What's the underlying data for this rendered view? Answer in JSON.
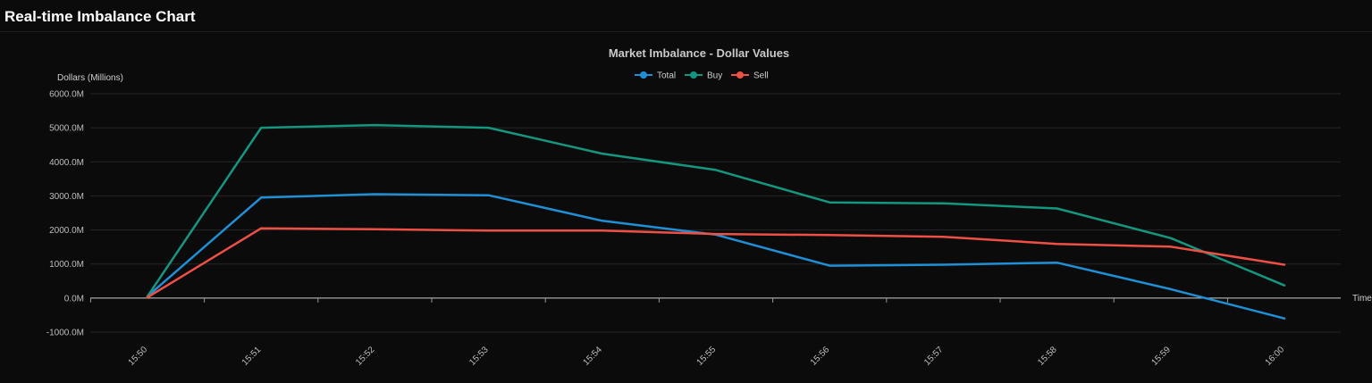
{
  "header": {
    "title": "Real-time Imbalance Chart"
  },
  "chart_data": {
    "type": "line",
    "title": "Market Imbalance - Dollar Values",
    "xlabel": "Time",
    "ylabel": "Dollars (Millions)",
    "ylim": [
      -1000,
      6000
    ],
    "yticks": [
      6000,
      5000,
      4000,
      3000,
      2000,
      1000,
      0,
      -1000
    ],
    "ytick_labels": [
      "6000.0M",
      "5000.0M",
      "4000.0M",
      "3000.0M",
      "2000.0M",
      "1000.0M",
      "0.0M",
      "-1000.0M"
    ],
    "x": [
      "15:50",
      "15:51",
      "15:52",
      "15:53",
      "15:54",
      "15:55",
      "15:56",
      "15:57",
      "15:58",
      "15:59",
      "16:00"
    ],
    "grid": true,
    "legend_position": "top-center",
    "series": [
      {
        "name": "Total",
        "color": "#1f8fd6",
        "values": [
          50,
          2950,
          3050,
          3020,
          2270,
          1860,
          950,
          980,
          1040,
          260,
          -600
        ]
      },
      {
        "name": "Buy",
        "color": "#14967f",
        "values": [
          50,
          5000,
          5080,
          5000,
          4240,
          3760,
          2810,
          2780,
          2630,
          1760,
          370
        ]
      },
      {
        "name": "Sell",
        "color": "#ef5045",
        "values": [
          20,
          2050,
          2020,
          1980,
          1980,
          1880,
          1850,
          1800,
          1590,
          1510,
          980
        ]
      }
    ]
  }
}
